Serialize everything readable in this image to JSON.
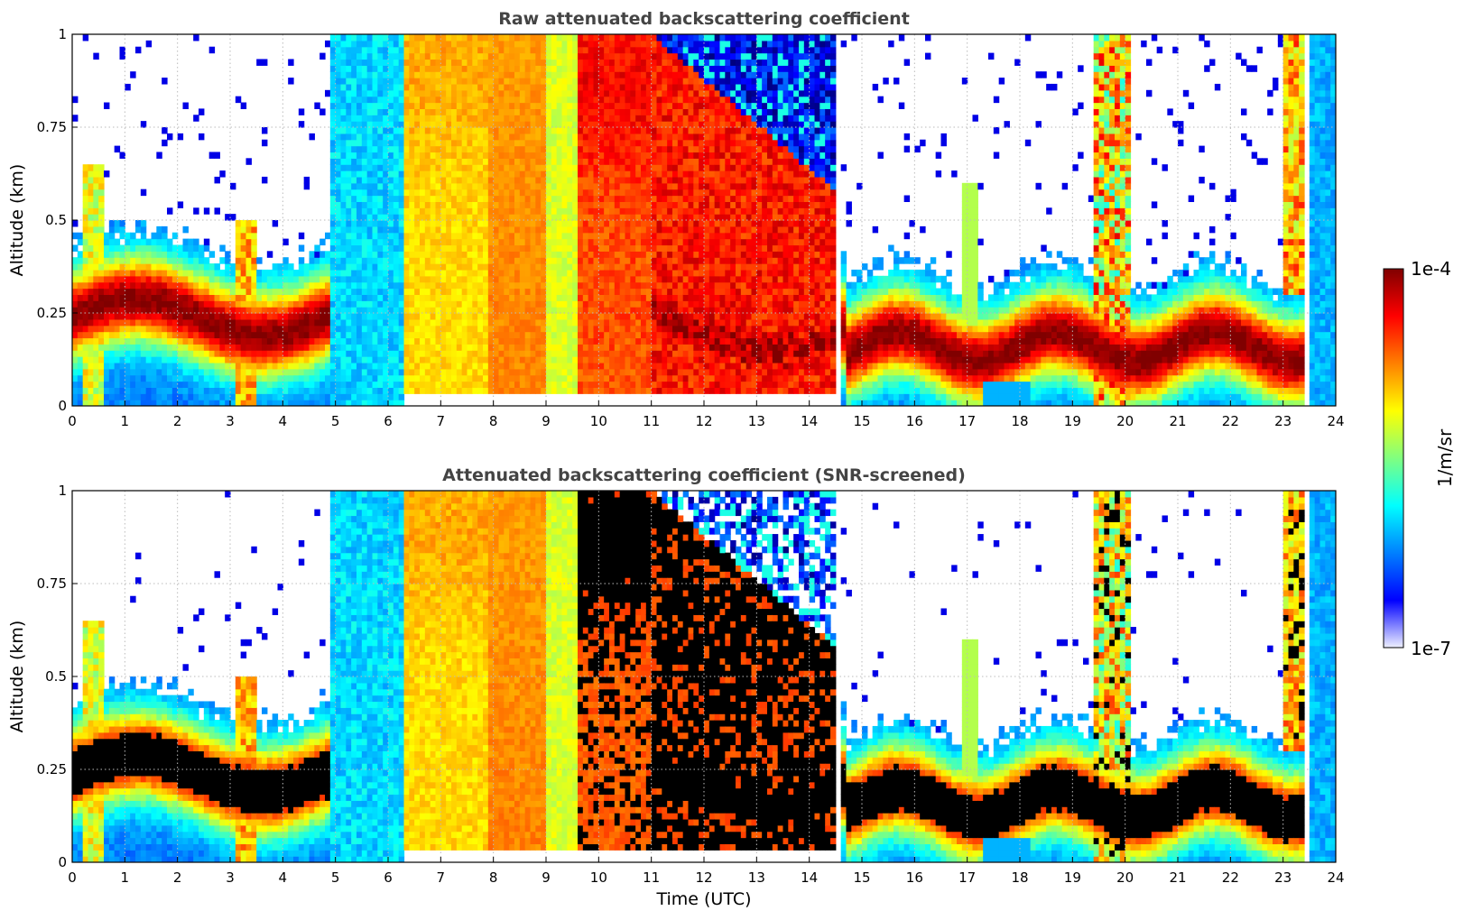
{
  "chart_data": [
    {
      "type": "heatmap",
      "title": "Raw attenuated backscattering coefficient",
      "xlabel": "",
      "ylabel": "Altitude (km)",
      "xlim": [
        0,
        24
      ],
      "ylim": [
        0,
        1
      ],
      "x_ticks": [
        "0",
        "1",
        "2",
        "3",
        "4",
        "5",
        "6",
        "7",
        "8",
        "9",
        "10",
        "11",
        "12",
        "13",
        "14",
        "15",
        "16",
        "17",
        "18",
        "19",
        "20",
        "21",
        "22",
        "23",
        "24"
      ],
      "y_ticks": [
        "0",
        "0.25",
        "0.5",
        "0.75",
        "1"
      ],
      "grid": true,
      "colormap": "jet",
      "color_scale": "log",
      "features": [
        {
          "time_range": [
            0,
            4.9
          ],
          "layer_altitude_km": [
            0.1,
            0.32
          ],
          "level": "high"
        },
        {
          "time_range": [
            5,
            6.3
          ],
          "column_altitude_km": [
            0,
            1
          ],
          "level": "low"
        },
        {
          "time_range": [
            6.4,
            9.6
          ],
          "column_altitude_km": [
            0.03,
            1
          ],
          "level": "medium-high"
        },
        {
          "time_range": [
            9.6,
            14.5
          ],
          "column_altitude_km": [
            0.03,
            1
          ],
          "level": "high"
        },
        {
          "time_range": [
            14.7,
            23.3
          ],
          "layer_altitude_km": [
            0.05,
            0.3
          ],
          "level": "high"
        },
        {
          "time_range": [
            23.3,
            24
          ],
          "column_altitude_km": [
            0,
            1
          ],
          "level": "low-medium"
        }
      ]
    },
    {
      "type": "heatmap",
      "title": "Attenuated backscattering coefficient (SNR-screened)",
      "xlabel": "Time (UTC)",
      "ylabel": "Altitude (km)",
      "xlim": [
        0,
        24
      ],
      "ylim": [
        0,
        1
      ],
      "x_ticks": [
        "0",
        "1",
        "2",
        "3",
        "4",
        "5",
        "6",
        "7",
        "8",
        "9",
        "10",
        "11",
        "12",
        "13",
        "14",
        "15",
        "16",
        "17",
        "18",
        "19",
        "20",
        "21",
        "22",
        "23",
        "24"
      ],
      "y_ticks": [
        "0",
        "0.25",
        "0.5",
        "0.75",
        "1"
      ],
      "grid": true,
      "colormap": "jet",
      "color_scale": "log",
      "saturated_color": "#000000"
    }
  ],
  "colorbar": {
    "max_label": "1e-4",
    "min_label": "1e-7",
    "unit_label": "1/m/sr",
    "colors": [
      "#eef0ff",
      "#0000ff",
      "#0080ff",
      "#00ffff",
      "#80ff80",
      "#ffff00",
      "#ff8000",
      "#ff0000",
      "#800000"
    ]
  }
}
